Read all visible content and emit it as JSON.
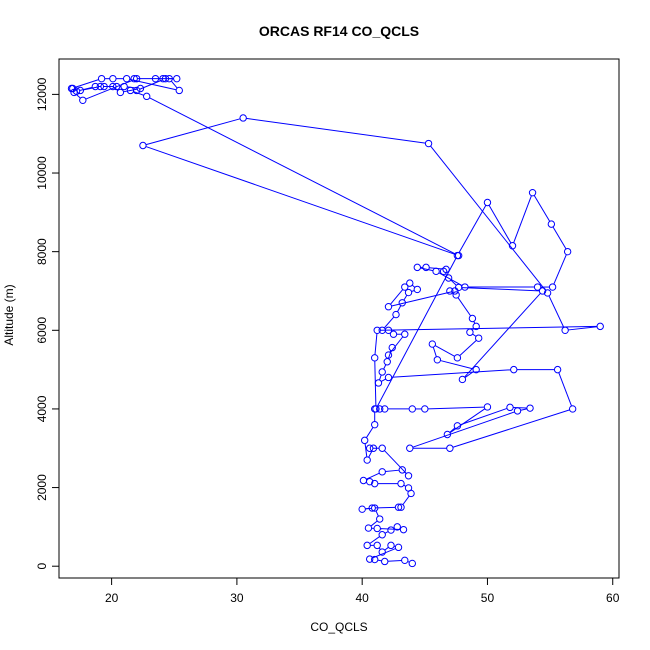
{
  "chart_data": {
    "type": "line",
    "title": "ORCAS RF14 CO_QCLS",
    "xlabel": "CO_QCLS",
    "ylabel": "Altitude (m)",
    "xlim": [
      15.8,
      60.5
    ],
    "ylim": [
      -300,
      12900
    ],
    "xticks": [
      20,
      30,
      40,
      50,
      60
    ],
    "yticks": [
      0,
      2000,
      4000,
      6000,
      8000,
      10000,
      12000
    ],
    "grid": false,
    "legend": "none",
    "series_color": "#0000ff",
    "marker": "open-circle",
    "points": [
      [
        44.0,
        70
      ],
      [
        43.4,
        150
      ],
      [
        41.8,
        120
      ],
      [
        41.0,
        170
      ],
      [
        40.6,
        180
      ],
      [
        42.9,
        480
      ],
      [
        42.3,
        530
      ],
      [
        41.6,
        360
      ],
      [
        41.2,
        530
      ],
      [
        40.4,
        530
      ],
      [
        41.6,
        800
      ],
      [
        42.3,
        920
      ],
      [
        42.8,
        1000
      ],
      [
        43.3,
        930
      ],
      [
        41.2,
        960
      ],
      [
        40.5,
        970
      ],
      [
        41.4,
        1200
      ],
      [
        41.0,
        1480
      ],
      [
        40.0,
        1450
      ],
      [
        40.8,
        1480
      ],
      [
        42.9,
        1500
      ],
      [
        43.1,
        1500
      ],
      [
        43.9,
        1850
      ],
      [
        43.7,
        1990
      ],
      [
        43.1,
        2100
      ],
      [
        41.0,
        2100
      ],
      [
        40.6,
        2150
      ],
      [
        40.1,
        2180
      ],
      [
        41.6,
        2400
      ],
      [
        43.2,
        2450
      ],
      [
        43.7,
        2300
      ],
      [
        41.6,
        3000
      ],
      [
        40.6,
        3000
      ],
      [
        40.9,
        3000
      ],
      [
        40.4,
        2700
      ],
      [
        40.2,
        3200
      ],
      [
        41.0,
        3600
      ],
      [
        41.0,
        4000
      ],
      [
        41.4,
        4000
      ],
      [
        41.8,
        4000
      ],
      [
        44.0,
        4000
      ],
      [
        45.0,
        4000
      ],
      [
        50.0,
        4050
      ],
      [
        46.8,
        3350
      ],
      [
        47.6,
        3570
      ],
      [
        51.8,
        4040
      ],
      [
        53.4,
        4020
      ],
      [
        52.4,
        3950
      ],
      [
        43.8,
        3000
      ],
      [
        47.0,
        3000
      ],
      [
        56.8,
        4000
      ],
      [
        55.6,
        5000
      ],
      [
        52.1,
        5000
      ],
      [
        42.1,
        4800
      ],
      [
        41.3,
        4660
      ],
      [
        41.6,
        4940
      ],
      [
        42.0,
        5200
      ],
      [
        42.4,
        5560
      ],
      [
        42.1,
        5370
      ],
      [
        43.4,
        5900
      ],
      [
        42.5,
        5900
      ],
      [
        42.1,
        6000
      ],
      [
        41.6,
        6000
      ],
      [
        42.7,
        6400
      ],
      [
        43.2,
        6700
      ],
      [
        43.7,
        6960
      ],
      [
        44.4,
        7040
      ],
      [
        43.8,
        7200
      ],
      [
        43.4,
        7100
      ],
      [
        42.1,
        6600
      ],
      [
        47.4,
        7000
      ],
      [
        47.0,
        7000
      ],
      [
        47.5,
        6900
      ],
      [
        48.8,
        6300
      ],
      [
        49.1,
        6100
      ],
      [
        48.6,
        5950
      ],
      [
        49.3,
        5800
      ],
      [
        47.6,
        5300
      ],
      [
        45.6,
        5650
      ],
      [
        46.0,
        5250
      ],
      [
        49.1,
        5000
      ],
      [
        48.0,
        4750
      ],
      [
        54.4,
        7000
      ],
      [
        47.7,
        7090
      ],
      [
        46.9,
        7330
      ],
      [
        46.5,
        7500
      ],
      [
        46.7,
        7550
      ],
      [
        45.1,
        7600
      ],
      [
        44.4,
        7600
      ],
      [
        45.9,
        7500
      ],
      [
        48.2,
        7100
      ],
      [
        54.0,
        7100
      ],
      [
        55.2,
        7100
      ],
      [
        56.4,
        8000
      ],
      [
        55.1,
        8700
      ],
      [
        53.6,
        9500
      ],
      [
        52.0,
        8150
      ],
      [
        50.0,
        9250
      ],
      [
        47.6,
        7900
      ],
      [
        41.1,
        4000
      ],
      [
        41.0,
        5300
      ],
      [
        41.2,
        6000
      ],
      [
        59.0,
        6100
      ],
      [
        56.2,
        6000
      ],
      [
        54.8,
        6950
      ],
      [
        45.3,
        10750
      ],
      [
        30.5,
        11400
      ],
      [
        22.5,
        10700
      ],
      [
        47.7,
        7900
      ],
      [
        22.8,
        11950
      ],
      [
        21.5,
        12100
      ],
      [
        22.0,
        12100
      ],
      [
        24.3,
        12400
      ],
      [
        25.2,
        12400
      ],
      [
        21.8,
        12400
      ],
      [
        22.0,
        12400
      ],
      [
        17.7,
        11850
      ],
      [
        17.0,
        12050
      ],
      [
        16.9,
        12150
      ],
      [
        17.2,
        12080
      ],
      [
        18.7,
        12200
      ],
      [
        19.4,
        12200
      ],
      [
        20.1,
        12200
      ],
      [
        20.7,
        12050
      ],
      [
        22.3,
        12150
      ],
      [
        21.0,
        12200
      ],
      [
        20.4,
        12200
      ],
      [
        19.1,
        12200
      ],
      [
        17.5,
        12100
      ],
      [
        16.8,
        12150
      ],
      [
        19.2,
        12400
      ],
      [
        20.1,
        12400
      ],
      [
        21.2,
        12400
      ],
      [
        25.4,
        12100
      ],
      [
        24.6,
        12400
      ],
      [
        24.1,
        12400
      ],
      [
        23.5,
        12400
      ]
    ]
  }
}
